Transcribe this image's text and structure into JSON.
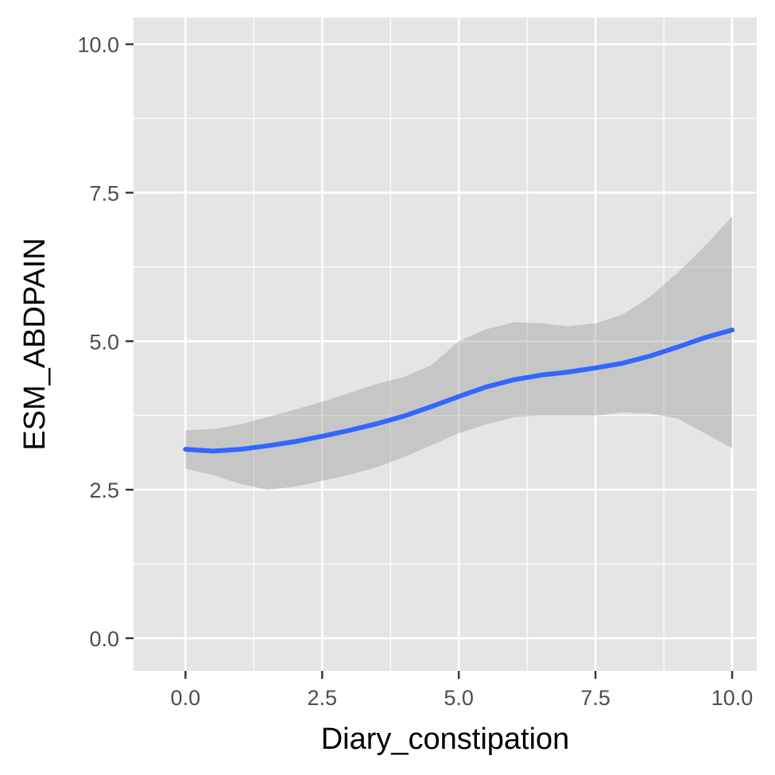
{
  "chart_data": {
    "type": "line",
    "title": "",
    "xlabel": "Diary_constipation",
    "ylabel": "ESM_ABDPAIN",
    "xlim": [
      -0.95,
      10.45
    ],
    "ylim": [
      -0.55,
      10.45
    ],
    "x_ticks": [
      0.0,
      2.5,
      5.0,
      7.5,
      10.0
    ],
    "x_tick_labels": [
      "0.0",
      "2.5",
      "5.0",
      "7.5",
      "10.0"
    ],
    "y_ticks": [
      0.0,
      2.5,
      5.0,
      7.5,
      10.0
    ],
    "y_tick_labels": [
      "0.0",
      "2.5",
      "5.0",
      "7.5",
      "10.0"
    ],
    "grid": true,
    "panel_background": "#e5e5e5",
    "grid_color": "#ffffff",
    "series": [
      {
        "type": "smooth",
        "color": "#3366ff",
        "ribbon_color": "#999999",
        "x": [
          0.0,
          0.5,
          1.0,
          1.5,
          2.0,
          2.5,
          3.0,
          3.5,
          4.0,
          4.5,
          5.0,
          5.5,
          6.0,
          6.5,
          7.0,
          7.5,
          8.0,
          8.5,
          9.0,
          9.5,
          10.0
        ],
        "y": [
          3.18,
          3.15,
          3.18,
          3.24,
          3.31,
          3.4,
          3.5,
          3.61,
          3.74,
          3.9,
          4.07,
          4.23,
          4.35,
          4.43,
          4.48,
          4.55,
          4.63,
          4.75,
          4.9,
          5.06,
          5.19
        ],
        "lower": [
          2.85,
          2.75,
          2.6,
          2.5,
          2.55,
          2.65,
          2.75,
          2.88,
          3.05,
          3.25,
          3.45,
          3.6,
          3.72,
          3.75,
          3.75,
          3.75,
          3.8,
          3.78,
          3.7,
          3.45,
          3.2
        ],
        "upper": [
          3.5,
          3.52,
          3.6,
          3.72,
          3.85,
          3.98,
          4.13,
          4.28,
          4.4,
          4.6,
          5.0,
          5.2,
          5.32,
          5.3,
          5.25,
          5.3,
          5.45,
          5.75,
          6.15,
          6.6,
          7.1
        ]
      }
    ]
  }
}
